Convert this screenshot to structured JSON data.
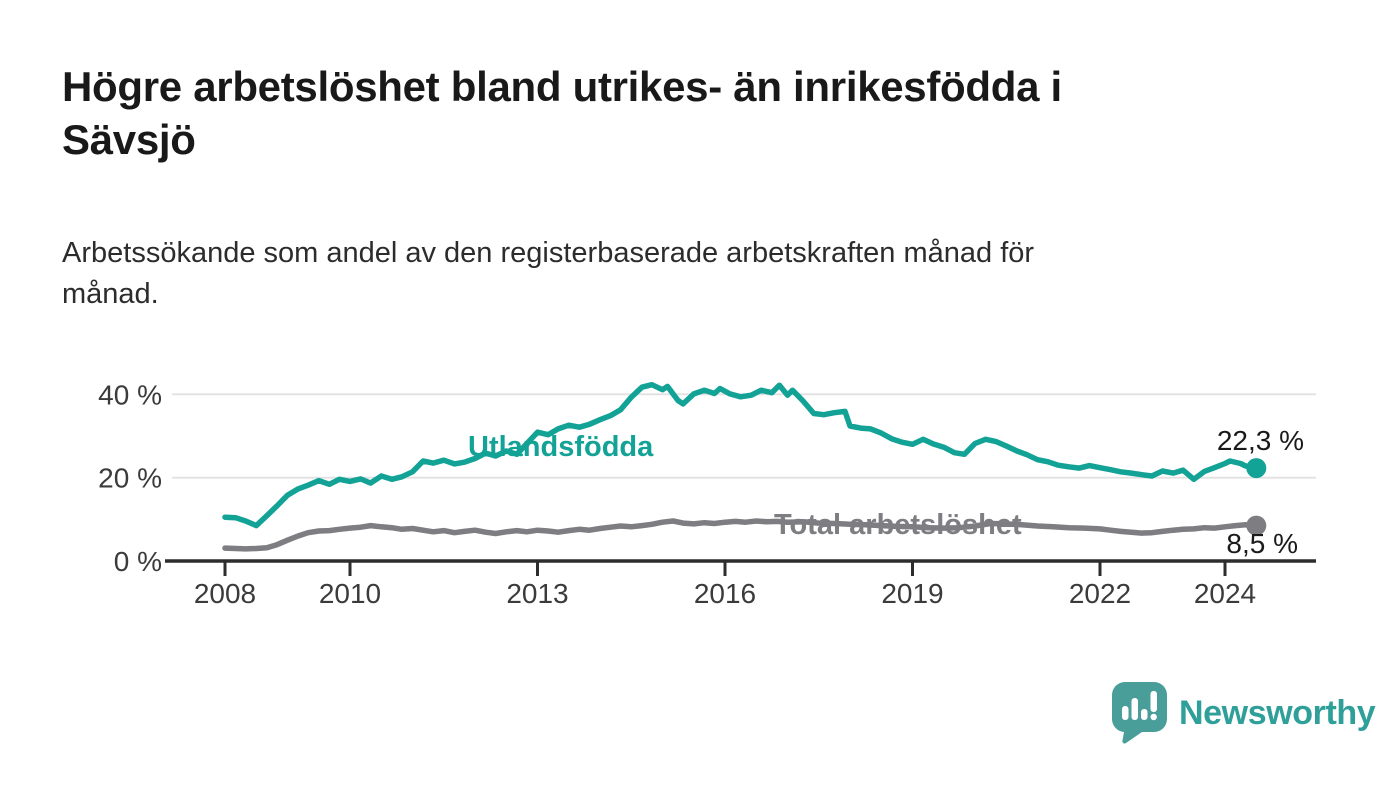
{
  "header": {
    "title": "Högre arbetslöshet bland utrikes- än inrikesfödda i Sävsjö",
    "title_lines": [
      "Högre arbetslöshet bland utrikes- än inrikesfödda i",
      "Sävsjö"
    ],
    "subtitle": "Arbetssökande som andel av den registerbaserade arbetskraften månad för månad.",
    "subtitle_lines": [
      "Arbetssökande som andel av den registerbaserade arbetskraften månad för",
      "månad."
    ]
  },
  "chart_data": {
    "type": "line",
    "title": "",
    "xlabel": "",
    "ylabel": "",
    "x_unit": "decimal_year",
    "xlim": [
      2007.1,
      2025.45
    ],
    "ylim": [
      0,
      45
    ],
    "grid": "horizontal-light",
    "legend_position": "inline-labels",
    "yticks": [
      {
        "value": 0,
        "label": "0 %"
      },
      {
        "value": 20,
        "label": "20 %"
      },
      {
        "value": 40,
        "label": "40 %"
      }
    ],
    "xticks": [
      {
        "value": 2008,
        "label": "2008"
      },
      {
        "value": 2010,
        "label": "2010"
      },
      {
        "value": 2013,
        "label": "2013"
      },
      {
        "value": 2016,
        "label": "2016"
      },
      {
        "value": 2019,
        "label": "2019"
      },
      {
        "value": 2022,
        "label": "2022"
      },
      {
        "value": 2024,
        "label": "2024"
      }
    ],
    "series": [
      {
        "id": "utlandsfodda",
        "name": "Utlandsfödda",
        "color": "#12a296",
        "line_width": 5.5,
        "end_dot": true,
        "end_value": 22.3,
        "end_label": "22,3 %",
        "points": [
          [
            2008.0,
            10.5
          ],
          [
            2008.17,
            10.4
          ],
          [
            2008.33,
            9.6
          ],
          [
            2008.5,
            8.5
          ],
          [
            2008.67,
            10.9
          ],
          [
            2008.83,
            13.2
          ],
          [
            2009.0,
            15.8
          ],
          [
            2009.17,
            17.3
          ],
          [
            2009.33,
            18.2
          ],
          [
            2009.5,
            19.3
          ],
          [
            2009.67,
            18.4
          ],
          [
            2009.83,
            19.6
          ],
          [
            2010.0,
            19.1
          ],
          [
            2010.17,
            19.7
          ],
          [
            2010.33,
            18.7
          ],
          [
            2010.5,
            20.4
          ],
          [
            2010.67,
            19.6
          ],
          [
            2010.83,
            20.2
          ],
          [
            2011.0,
            21.4
          ],
          [
            2011.17,
            24.0
          ],
          [
            2011.33,
            23.5
          ],
          [
            2011.5,
            24.2
          ],
          [
            2011.67,
            23.3
          ],
          [
            2011.83,
            23.7
          ],
          [
            2012.0,
            24.6
          ],
          [
            2012.17,
            25.9
          ],
          [
            2012.33,
            25.2
          ],
          [
            2012.5,
            26.4
          ],
          [
            2012.67,
            25.6
          ],
          [
            2012.83,
            28.2
          ],
          [
            2013.0,
            30.9
          ],
          [
            2013.17,
            30.3
          ],
          [
            2013.33,
            31.7
          ],
          [
            2013.5,
            32.6
          ],
          [
            2013.67,
            32.1
          ],
          [
            2013.83,
            32.8
          ],
          [
            2014.0,
            33.9
          ],
          [
            2014.17,
            34.9
          ],
          [
            2014.33,
            36.3
          ],
          [
            2014.5,
            39.3
          ],
          [
            2014.67,
            41.7
          ],
          [
            2014.83,
            42.3
          ],
          [
            2015.0,
            41.1
          ],
          [
            2015.08,
            41.9
          ],
          [
            2015.25,
            38.5
          ],
          [
            2015.33,
            37.7
          ],
          [
            2015.5,
            40.1
          ],
          [
            2015.67,
            41.0
          ],
          [
            2015.83,
            40.2
          ],
          [
            2015.92,
            41.4
          ],
          [
            2016.08,
            40.1
          ],
          [
            2016.25,
            39.4
          ],
          [
            2016.42,
            39.8
          ],
          [
            2016.58,
            41.0
          ],
          [
            2016.75,
            40.4
          ],
          [
            2016.87,
            42.2
          ],
          [
            2017.0,
            39.8
          ],
          [
            2017.08,
            41.0
          ],
          [
            2017.25,
            38.4
          ],
          [
            2017.42,
            35.4
          ],
          [
            2017.58,
            35.1
          ],
          [
            2017.75,
            35.6
          ],
          [
            2017.92,
            35.9
          ],
          [
            2018.0,
            32.4
          ],
          [
            2018.17,
            31.9
          ],
          [
            2018.33,
            31.7
          ],
          [
            2018.5,
            30.7
          ],
          [
            2018.67,
            29.3
          ],
          [
            2018.83,
            28.5
          ],
          [
            2019.0,
            28.0
          ],
          [
            2019.17,
            29.2
          ],
          [
            2019.33,
            28.1
          ],
          [
            2019.5,
            27.3
          ],
          [
            2019.67,
            26.0
          ],
          [
            2019.83,
            25.6
          ],
          [
            2020.0,
            28.2
          ],
          [
            2020.17,
            29.2
          ],
          [
            2020.33,
            28.7
          ],
          [
            2020.5,
            27.6
          ],
          [
            2020.67,
            26.4
          ],
          [
            2020.83,
            25.5
          ],
          [
            2021.0,
            24.3
          ],
          [
            2021.17,
            23.8
          ],
          [
            2021.33,
            23.0
          ],
          [
            2021.5,
            22.6
          ],
          [
            2021.67,
            22.3
          ],
          [
            2021.83,
            22.9
          ],
          [
            2022.0,
            22.4
          ],
          [
            2022.17,
            21.9
          ],
          [
            2022.33,
            21.4
          ],
          [
            2022.5,
            21.1
          ],
          [
            2022.67,
            20.7
          ],
          [
            2022.83,
            20.4
          ],
          [
            2023.0,
            21.6
          ],
          [
            2023.17,
            21.1
          ],
          [
            2023.33,
            21.8
          ],
          [
            2023.5,
            19.6
          ],
          [
            2023.67,
            21.5
          ],
          [
            2023.83,
            22.4
          ],
          [
            2024.0,
            23.4
          ],
          [
            2024.08,
            24.0
          ],
          [
            2024.25,
            23.4
          ],
          [
            2024.33,
            22.8
          ],
          [
            2024.42,
            22.6
          ],
          [
            2024.5,
            22.3
          ]
        ]
      },
      {
        "id": "total",
        "name": "Total arbetslöshet",
        "color": "#7d7d82",
        "line_width": 5.5,
        "end_dot": true,
        "end_value": 8.5,
        "end_label": "8,5 %",
        "points": [
          [
            2008.0,
            3.1
          ],
          [
            2008.17,
            3.0
          ],
          [
            2008.33,
            2.9
          ],
          [
            2008.5,
            3.0
          ],
          [
            2008.67,
            3.2
          ],
          [
            2008.83,
            3.9
          ],
          [
            2009.0,
            5.0
          ],
          [
            2009.17,
            6.0
          ],
          [
            2009.33,
            6.8
          ],
          [
            2009.5,
            7.2
          ],
          [
            2009.67,
            7.3
          ],
          [
            2009.83,
            7.6
          ],
          [
            2010.0,
            7.9
          ],
          [
            2010.17,
            8.1
          ],
          [
            2010.33,
            8.5
          ],
          [
            2010.5,
            8.2
          ],
          [
            2010.67,
            8.0
          ],
          [
            2010.83,
            7.6
          ],
          [
            2011.0,
            7.8
          ],
          [
            2011.17,
            7.4
          ],
          [
            2011.33,
            7.0
          ],
          [
            2011.5,
            7.3
          ],
          [
            2011.67,
            6.8
          ],
          [
            2011.83,
            7.1
          ],
          [
            2012.0,
            7.4
          ],
          [
            2012.17,
            6.9
          ],
          [
            2012.33,
            6.6
          ],
          [
            2012.5,
            7.0
          ],
          [
            2012.67,
            7.3
          ],
          [
            2012.83,
            7.0
          ],
          [
            2013.0,
            7.4
          ],
          [
            2013.17,
            7.2
          ],
          [
            2013.33,
            6.9
          ],
          [
            2013.5,
            7.3
          ],
          [
            2013.67,
            7.6
          ],
          [
            2013.83,
            7.4
          ],
          [
            2014.0,
            7.8
          ],
          [
            2014.17,
            8.1
          ],
          [
            2014.33,
            8.4
          ],
          [
            2014.5,
            8.2
          ],
          [
            2014.67,
            8.5
          ],
          [
            2014.83,
            8.8
          ],
          [
            2015.0,
            9.3
          ],
          [
            2015.17,
            9.6
          ],
          [
            2015.33,
            9.1
          ],
          [
            2015.5,
            8.9
          ],
          [
            2015.67,
            9.2
          ],
          [
            2015.83,
            9.0
          ],
          [
            2016.0,
            9.3
          ],
          [
            2016.17,
            9.5
          ],
          [
            2016.33,
            9.3
          ],
          [
            2016.5,
            9.6
          ],
          [
            2016.67,
            9.4
          ],
          [
            2016.83,
            9.5
          ],
          [
            2017.0,
            9.3
          ],
          [
            2017.25,
            9.4
          ],
          [
            2017.5,
            9.1
          ],
          [
            2017.75,
            9.0
          ],
          [
            2018.0,
            8.8
          ],
          [
            2018.25,
            8.7
          ],
          [
            2018.5,
            8.5
          ],
          [
            2018.75,
            8.3
          ],
          [
            2019.0,
            8.2
          ],
          [
            2019.25,
            8.0
          ],
          [
            2019.5,
            7.9
          ],
          [
            2019.75,
            8.0
          ],
          [
            2020.0,
            8.4
          ],
          [
            2020.25,
            9.0
          ],
          [
            2020.5,
            8.9
          ],
          [
            2020.75,
            8.7
          ],
          [
            2021.0,
            8.4
          ],
          [
            2021.25,
            8.2
          ],
          [
            2021.5,
            8.0
          ],
          [
            2021.75,
            7.9
          ],
          [
            2022.0,
            7.7
          ],
          [
            2022.17,
            7.4
          ],
          [
            2022.33,
            7.1
          ],
          [
            2022.5,
            6.9
          ],
          [
            2022.67,
            6.7
          ],
          [
            2022.83,
            6.8
          ],
          [
            2023.0,
            7.1
          ],
          [
            2023.17,
            7.4
          ],
          [
            2023.33,
            7.6
          ],
          [
            2023.5,
            7.7
          ],
          [
            2023.67,
            8.0
          ],
          [
            2023.83,
            7.9
          ],
          [
            2024.0,
            8.2
          ],
          [
            2024.17,
            8.5
          ],
          [
            2024.33,
            8.7
          ],
          [
            2024.5,
            8.5
          ]
        ]
      }
    ]
  },
  "branding": {
    "wordmark": "Newsworthy",
    "wordmark_color": "#2f9f99",
    "bubble_color": "#4a9e99",
    "icon": "newsworthy-speech-bubble-chart-icon"
  }
}
